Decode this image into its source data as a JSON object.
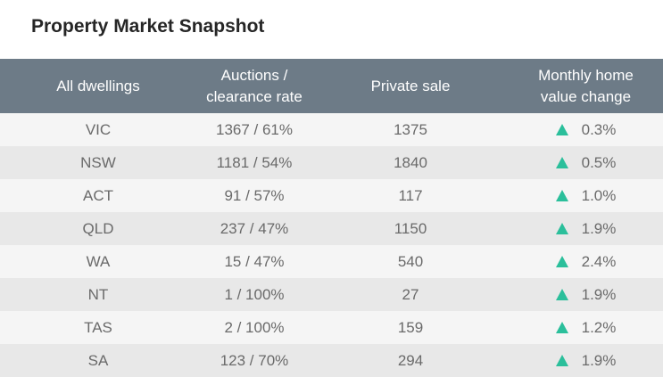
{
  "title": "Property Market Snapshot",
  "colors": {
    "header_bg": "#6d7b87",
    "up_arrow": "#2bbf9b"
  },
  "table": {
    "headers": {
      "dwellings": [
        "All dwellings"
      ],
      "auctions": [
        "Auctions /",
        "clearance rate"
      ],
      "private": [
        "Private sale"
      ],
      "monthly": [
        "Monthly home",
        "value change"
      ]
    },
    "rows": [
      {
        "state": "VIC",
        "auctions": "1367 / 61%",
        "private": "1375",
        "change": "0.3%",
        "trend_icon": "up-arrow-icon"
      },
      {
        "state": "NSW",
        "auctions": "1181 / 54%",
        "private": "1840",
        "change": "0.5%",
        "trend_icon": "up-arrow-icon"
      },
      {
        "state": "ACT",
        "auctions": "91 / 57%",
        "private": "117",
        "change": "1.0%",
        "trend_icon": "up-arrow-icon"
      },
      {
        "state": "QLD",
        "auctions": "237 / 47%",
        "private": "1150",
        "change": "1.9%",
        "trend_icon": "up-arrow-icon"
      },
      {
        "state": "WA",
        "auctions": "15 / 47%",
        "private": "540",
        "change": "2.4%",
        "trend_icon": "up-arrow-icon"
      },
      {
        "state": "NT",
        "auctions": "1 / 100%",
        "private": "27",
        "change": "1.9%",
        "trend_icon": "up-arrow-icon"
      },
      {
        "state": "TAS",
        "auctions": "2 / 100%",
        "private": "159",
        "change": "1.2%",
        "trend_icon": "up-arrow-icon"
      },
      {
        "state": "SA",
        "auctions": "123 / 70%",
        "private": "294",
        "change": "1.9%",
        "trend_icon": "up-arrow-icon"
      }
    ]
  }
}
